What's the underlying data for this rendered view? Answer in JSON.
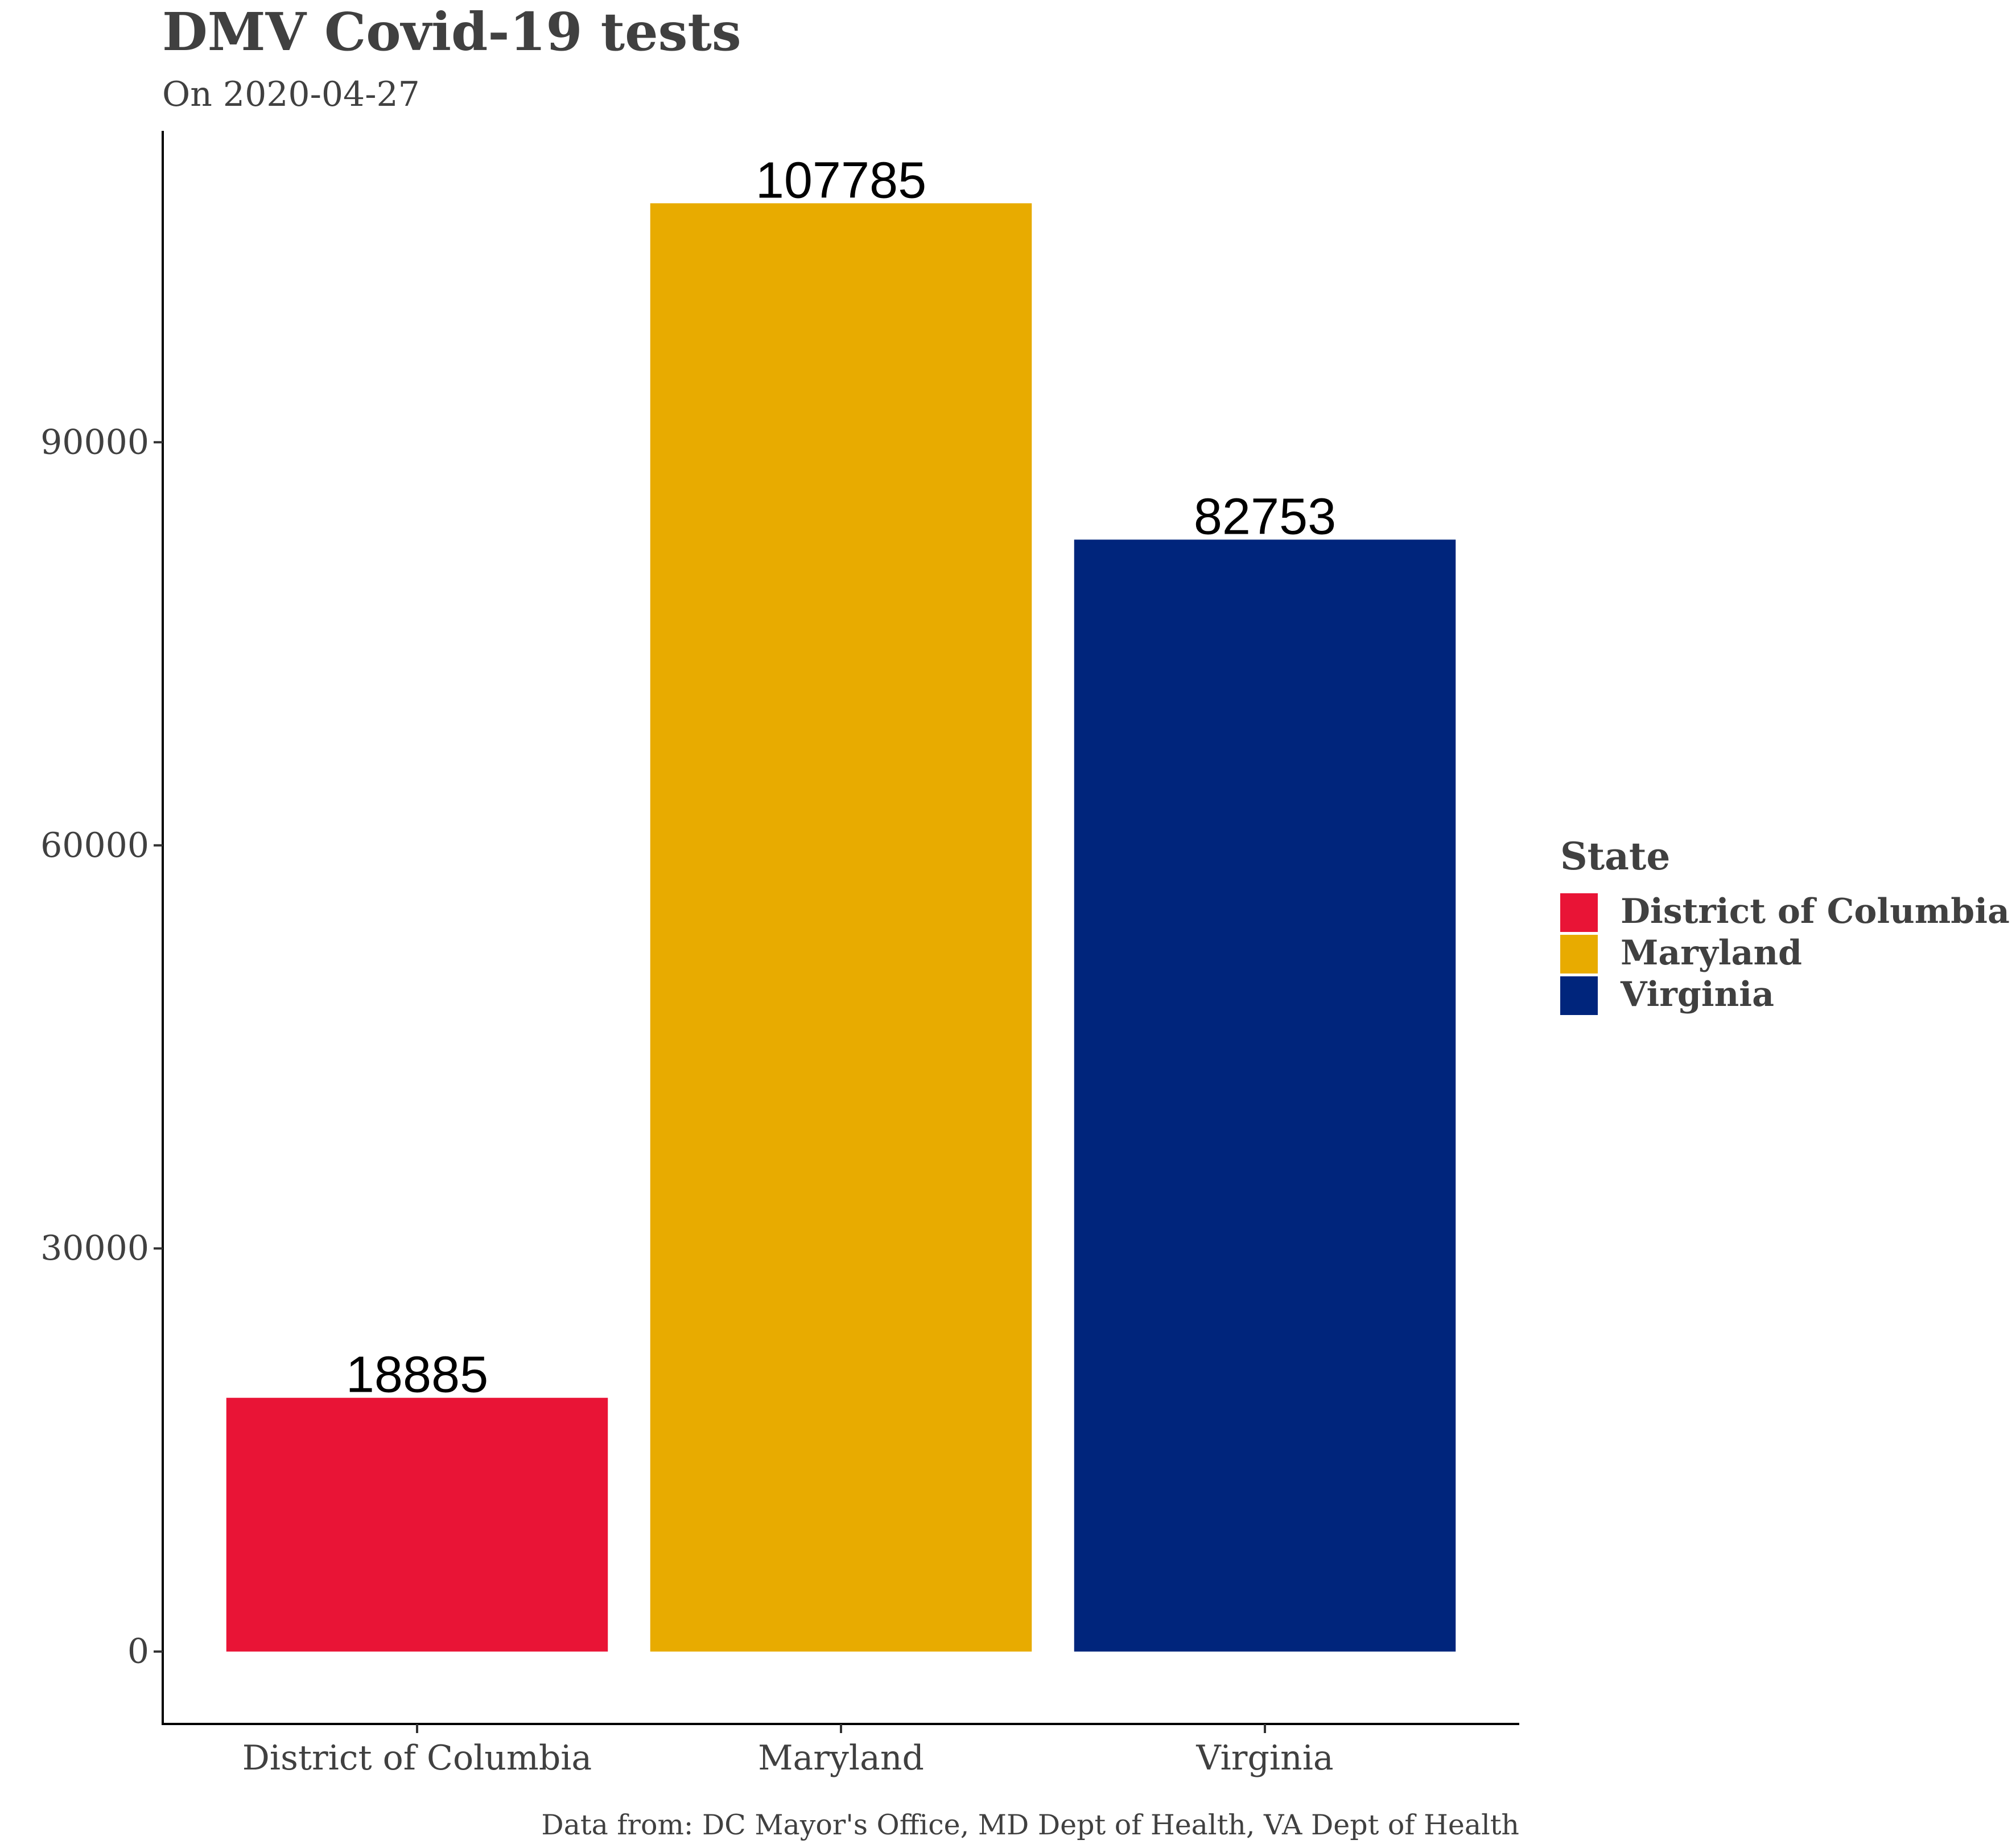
{
  "chart_data": {
    "type": "bar",
    "title": "DMV Covid-19 tests",
    "subtitle": "On 2020-04-27",
    "caption": "Data from: DC Mayor's Office, MD Dept of Health, VA Dept of Health",
    "xlabel": "",
    "ylabel": "",
    "categories": [
      "District of Columbia",
      "Maryland",
      "Virginia"
    ],
    "values": [
      18885,
      107785,
      82753
    ],
    "data_labels": [
      "18885",
      "107785",
      "82753"
    ],
    "colors": [
      "#E91436",
      "#E8AB00",
      "#00257C"
    ],
    "yticks": [
      0,
      30000,
      60000,
      90000
    ],
    "ytick_labels": [
      "0",
      "30000",
      "60000",
      "90000"
    ],
    "ylim": [
      -5389,
      113174
    ],
    "grid": false,
    "legend": {
      "title": "State",
      "position": "right",
      "entries": [
        "District of Columbia",
        "Maryland",
        "Virginia"
      ]
    }
  }
}
